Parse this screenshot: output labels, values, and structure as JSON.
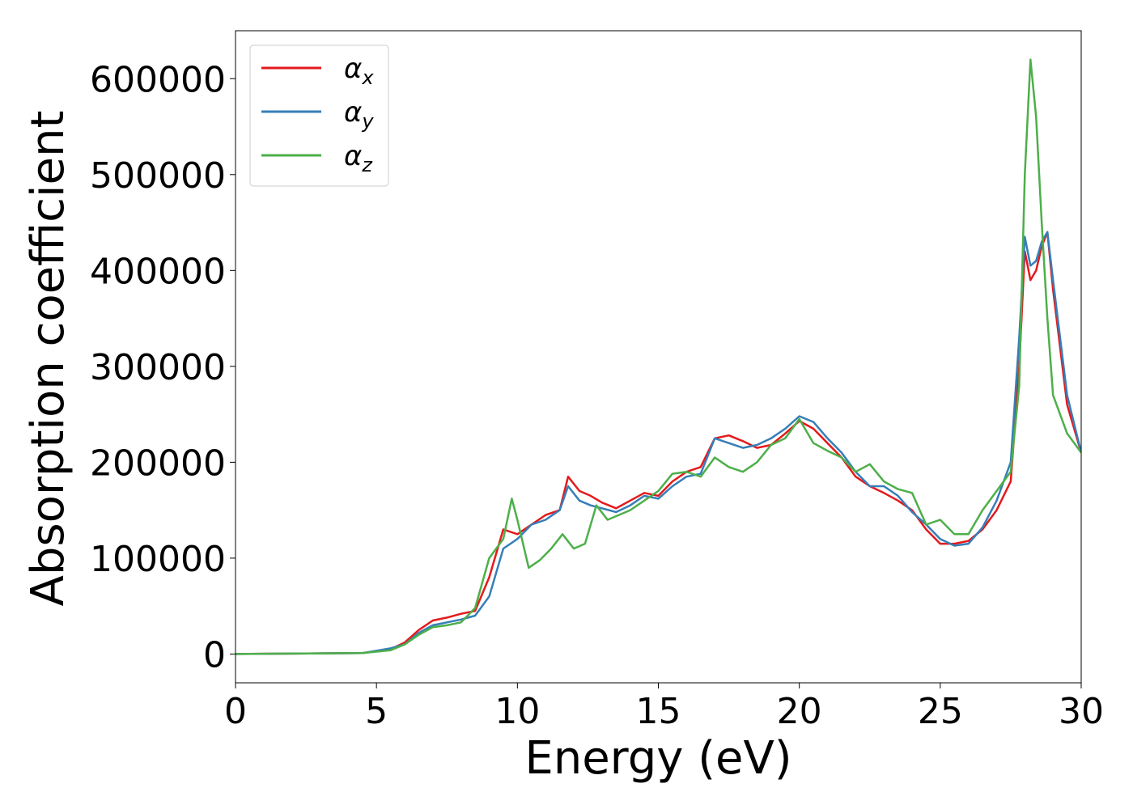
{
  "chart_data": {
    "type": "line",
    "title": "",
    "xlabel": "Energy (eV)",
    "ylabel": "Absorption coefficient",
    "xlim": [
      0,
      30
    ],
    "ylim": [
      -30000,
      650000
    ],
    "xticks": [
      0,
      5,
      10,
      15,
      20,
      25,
      30
    ],
    "yticks": [
      0,
      100000,
      200000,
      300000,
      400000,
      500000,
      600000
    ],
    "legend_position": "top-left",
    "grid": false,
    "series": [
      {
        "name": "α_x",
        "legend_symbol": "α",
        "legend_subscript": "x",
        "color": "#e41a1c",
        "x": [
          0,
          4.5,
          5.5,
          6,
          6.5,
          7,
          7.5,
          8,
          8.5,
          9,
          9.5,
          10,
          10.5,
          11,
          11.5,
          11.8,
          12.2,
          12.6,
          13,
          13.5,
          14,
          14.5,
          15,
          15.5,
          16,
          16.5,
          17,
          17.5,
          18,
          18.5,
          19,
          19.5,
          20,
          20.5,
          21,
          21.5,
          22,
          22.5,
          23,
          23.5,
          24,
          24.5,
          25,
          25.5,
          26,
          26.5,
          27,
          27.5,
          27.8,
          28,
          28.2,
          28.4,
          28.6,
          28.8,
          29,
          29.5,
          30
        ],
        "y": [
          0,
          1000,
          5000,
          12000,
          25000,
          35000,
          38000,
          42000,
          45000,
          80000,
          130000,
          125000,
          135000,
          145000,
          150000,
          185000,
          170000,
          165000,
          158000,
          152000,
          160000,
          168000,
          165000,
          180000,
          190000,
          195000,
          225000,
          228000,
          222000,
          215000,
          218000,
          230000,
          243000,
          235000,
          220000,
          205000,
          185000,
          175000,
          168000,
          160000,
          150000,
          130000,
          115000,
          115000,
          118000,
          130000,
          150000,
          180000,
          300000,
          420000,
          390000,
          400000,
          425000,
          440000,
          380000,
          260000,
          210000
        ]
      },
      {
        "name": "α_y",
        "legend_symbol": "α",
        "legend_subscript": "y",
        "color": "#377eb8",
        "x": [
          0,
          4.5,
          5.5,
          6,
          6.5,
          7,
          7.5,
          8,
          8.5,
          9,
          9.5,
          10,
          10.5,
          11,
          11.5,
          11.8,
          12.2,
          12.6,
          13,
          13.5,
          14,
          14.5,
          15,
          15.5,
          16,
          16.5,
          17,
          17.5,
          18,
          18.5,
          19,
          19.5,
          20,
          20.5,
          21,
          21.5,
          22,
          22.5,
          23,
          23.5,
          24,
          24.5,
          25,
          25.5,
          26,
          26.5,
          27,
          27.5,
          27.8,
          28,
          28.2,
          28.4,
          28.6,
          28.8,
          29,
          29.5,
          30
        ],
        "y": [
          0,
          1000,
          6000,
          10000,
          22000,
          30000,
          33000,
          36000,
          40000,
          60000,
          110000,
          120000,
          135000,
          140000,
          150000,
          175000,
          160000,
          155000,
          152000,
          148000,
          155000,
          165000,
          162000,
          175000,
          185000,
          188000,
          225000,
          220000,
          215000,
          218000,
          225000,
          235000,
          248000,
          242000,
          225000,
          210000,
          190000,
          175000,
          175000,
          165000,
          148000,
          135000,
          120000,
          113000,
          115000,
          132000,
          160000,
          200000,
          330000,
          435000,
          405000,
          410000,
          430000,
          440000,
          390000,
          270000,
          210000
        ]
      },
      {
        "name": "α_z",
        "legend_symbol": "α",
        "legend_subscript": "z",
        "color": "#4daf4a",
        "x": [
          0,
          4.5,
          5.5,
          6,
          6.5,
          7,
          7.5,
          8,
          8.5,
          9,
          9.5,
          9.8,
          10,
          10.4,
          10.8,
          11.2,
          11.6,
          12,
          12.4,
          12.8,
          13.2,
          13.6,
          14,
          14.5,
          15,
          15.5,
          16,
          16.5,
          17,
          17.5,
          18,
          18.5,
          19,
          19.5,
          20,
          20.5,
          21,
          21.5,
          22,
          22.5,
          23,
          23.5,
          24,
          24.5,
          25,
          25.5,
          26,
          26.5,
          27,
          27.5,
          27.8,
          28,
          28.2,
          28.4,
          28.6,
          28.8,
          29,
          29.5,
          30
        ],
        "y": [
          0,
          1000,
          4000,
          10000,
          20000,
          28000,
          30000,
          33000,
          48000,
          100000,
          120000,
          162000,
          140000,
          90000,
          98000,
          110000,
          125000,
          110000,
          115000,
          155000,
          140000,
          145000,
          150000,
          160000,
          170000,
          188000,
          190000,
          185000,
          205000,
          195000,
          190000,
          200000,
          218000,
          225000,
          245000,
          220000,
          212000,
          205000,
          190000,
          198000,
          180000,
          172000,
          168000,
          135000,
          140000,
          125000,
          125000,
          150000,
          170000,
          190000,
          280000,
          500000,
          620000,
          560000,
          450000,
          350000,
          270000,
          230000,
          210000
        ]
      }
    ]
  }
}
